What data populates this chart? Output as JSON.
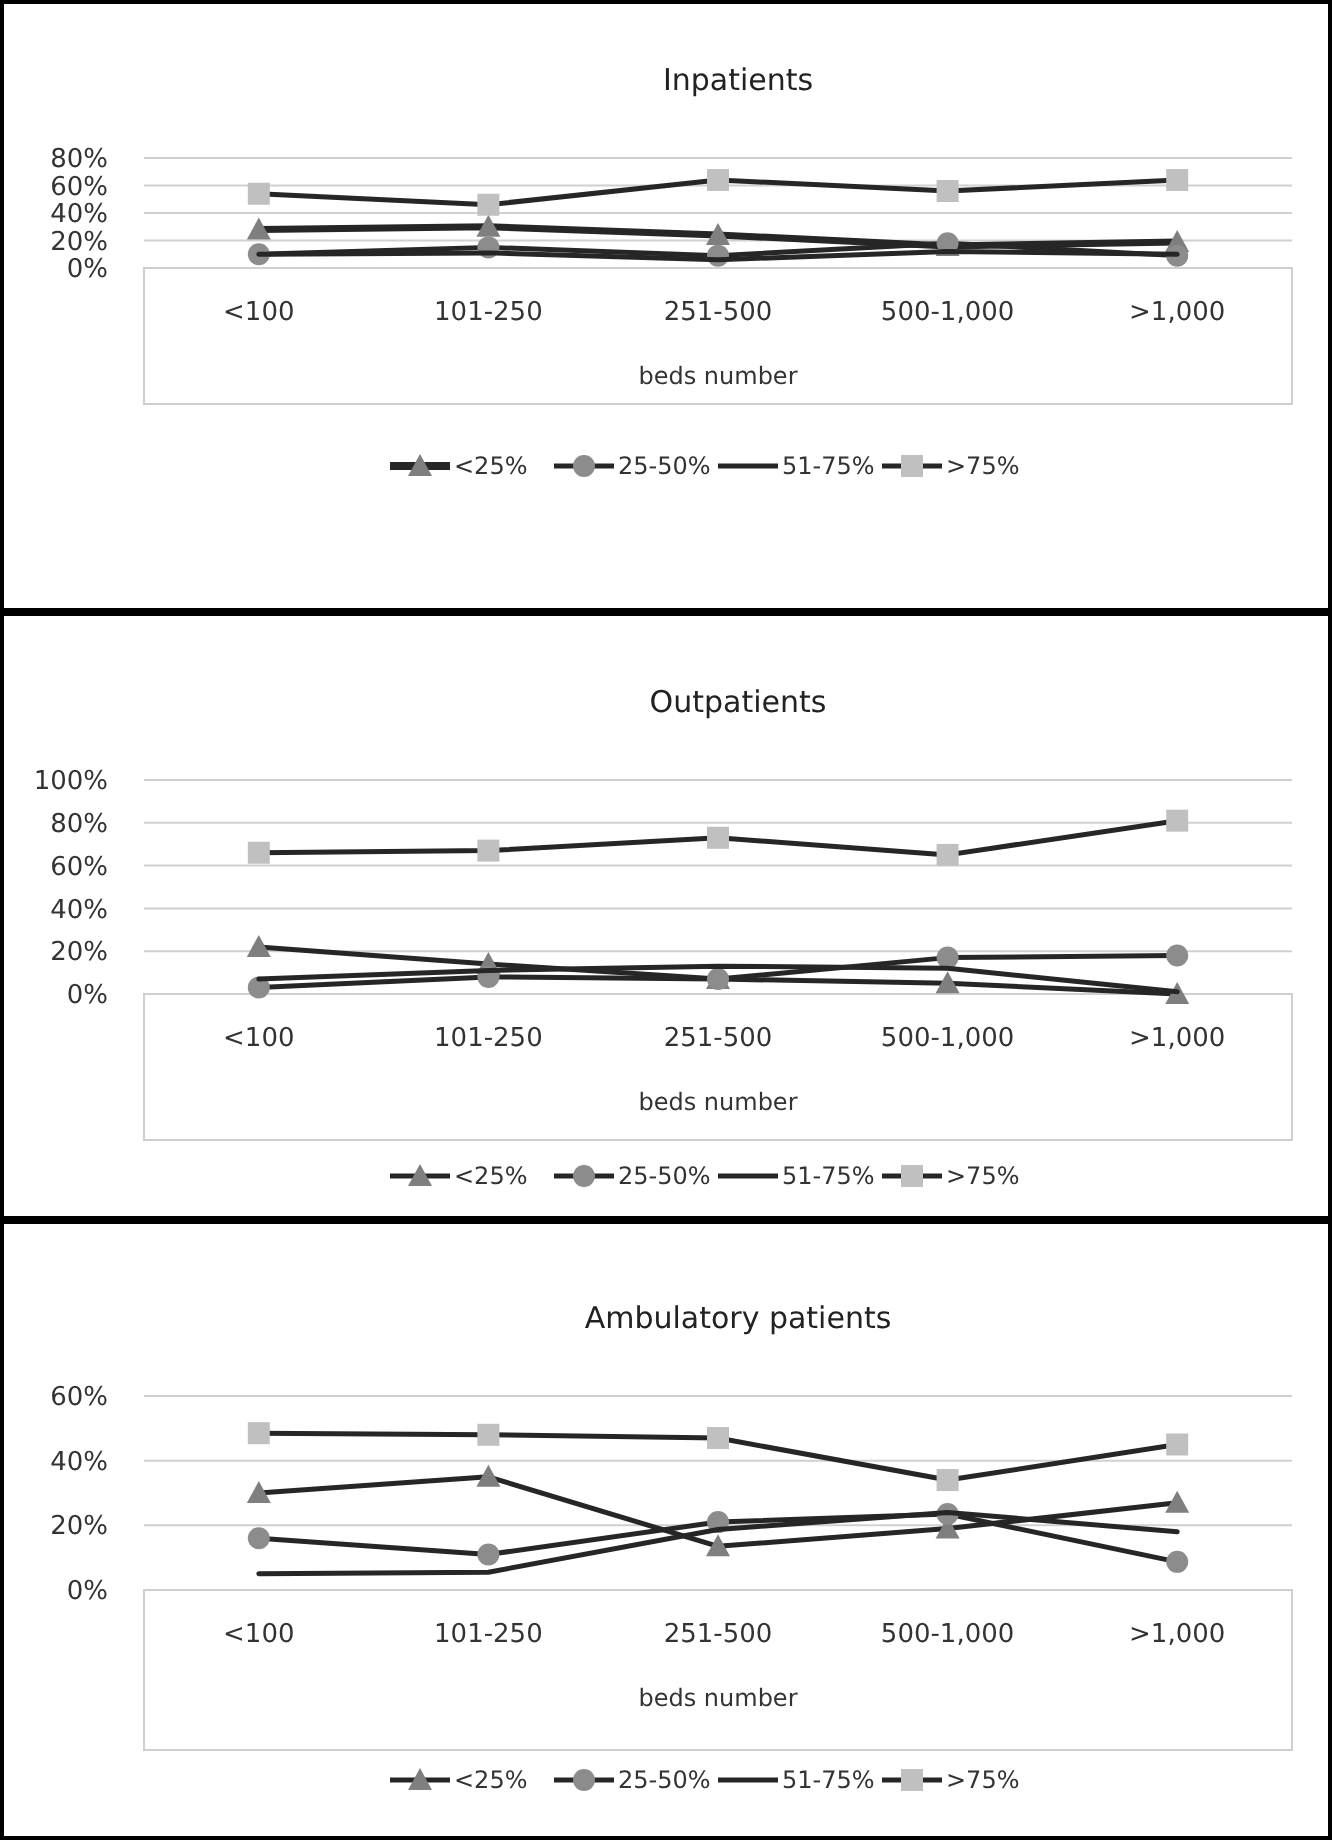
{
  "chart_data": [
    {
      "type": "line",
      "title": "Inpatients",
      "xlabel": "beds number",
      "categories": [
        "<100",
        "101-250",
        "251-500",
        "500-1,000",
        ">1,000"
      ],
      "ylim": [
        0,
        80
      ],
      "yticks": [
        {
          "value": 0,
          "label": "0%"
        },
        {
          "value": 20,
          "label": "20%"
        },
        {
          "value": 40,
          "label": "40%"
        },
        {
          "value": 60,
          "label": "60%"
        },
        {
          "value": 80,
          "label": "80%"
        }
      ],
      "grid": "y",
      "legend": "bottom",
      "series": [
        {
          "name": "<25%",
          "color": "#7f7f7f",
          "marker": "triangle",
          "values": [
            28,
            30,
            24,
            16,
            19
          ]
        },
        {
          "name": "25-50%",
          "color": "#8c8c8c",
          "marker": "circle",
          "values": [
            10,
            15,
            9,
            18,
            9
          ]
        },
        {
          "name": "51-75%",
          "color": "#262626",
          "marker": "none",
          "values": [
            10,
            11,
            6,
            12,
            10
          ]
        },
        {
          "name": ">75%",
          "color": "#c0c0c0",
          "marker": "square",
          "values": [
            54,
            46,
            64,
            56,
            64
          ]
        }
      ]
    },
    {
      "type": "line",
      "title": "Outpatients",
      "xlabel": "beds number",
      "categories": [
        "<100",
        "101-250",
        "251-500",
        "500-1,000",
        ">1,000"
      ],
      "ylim": [
        0,
        100
      ],
      "yticks": [
        {
          "value": 0,
          "label": "0%"
        },
        {
          "value": 20,
          "label": "20%"
        },
        {
          "value": 40,
          "label": "40%"
        },
        {
          "value": 60,
          "label": "60%"
        },
        {
          "value": 80,
          "label": "80%"
        },
        {
          "value": 100,
          "label": "100%"
        }
      ],
      "grid": "y",
      "legend": "bottom",
      "series": [
        {
          "name": "<25%",
          "color": "#7f7f7f",
          "marker": "triangle",
          "values": [
            22,
            14,
            7,
            5,
            0
          ]
        },
        {
          "name": "25-50%",
          "color": "#8c8c8c",
          "marker": "circle",
          "values": [
            3,
            8,
            7,
            17,
            18
          ]
        },
        {
          "name": "51-75%",
          "color": "#262626",
          "marker": "none",
          "values": [
            7,
            11,
            13,
            12,
            1
          ]
        },
        {
          "name": ">75%",
          "color": "#c0c0c0",
          "marker": "square",
          "values": [
            66,
            67,
            73,
            65,
            81
          ]
        }
      ]
    },
    {
      "type": "line",
      "title": "Ambulatory patients",
      "xlabel": "beds number",
      "categories": [
        "<100",
        "101-250",
        "251-500",
        "500-1,000",
        ">1,000"
      ],
      "ylim": [
        0,
        60
      ],
      "yticks": [
        {
          "value": 0,
          "label": "0%"
        },
        {
          "value": 20,
          "label": "20%"
        },
        {
          "value": 40,
          "label": "40%"
        },
        {
          "value": 60,
          "label": "60%"
        }
      ],
      "grid": "y",
      "legend": "bottom",
      "series": [
        {
          "name": "<25%",
          "color": "#7f7f7f",
          "marker": "triangle",
          "values": [
            30,
            35,
            13.5,
            19,
            27
          ]
        },
        {
          "name": "25-50%",
          "color": "#8c8c8c",
          "marker": "circle",
          "values": [
            16,
            11,
            21,
            23.5,
            8.7
          ]
        },
        {
          "name": "51-75%",
          "color": "#262626",
          "marker": "none",
          "values": [
            5,
            5.5,
            18.7,
            24,
            18
          ]
        },
        {
          "name": ">75%",
          "color": "#c0c0c0",
          "marker": "square",
          "values": [
            48.5,
            48,
            47,
            34,
            45
          ]
        }
      ]
    }
  ]
}
